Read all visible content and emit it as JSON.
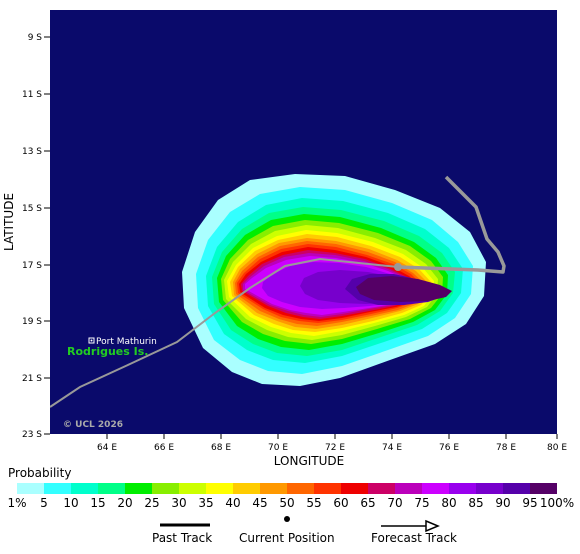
{
  "map": {
    "background_color": "#0a0a6b",
    "lat_axis_title": "LATITUDE",
    "lon_axis_title": "LONGITUDE",
    "lat_labels": [
      "9 S",
      "11 S",
      "13 S",
      "15 S",
      "17 S",
      "19 S",
      "21 S",
      "23 S"
    ],
    "lon_labels": [
      "64 E",
      "66 E",
      "68 E",
      "70 E",
      "72 E",
      "74 E",
      "76 E",
      "78 E",
      "80 E"
    ],
    "island_name": "Rodrigues Is.",
    "island_color": "#22cc22",
    "city_name": "Port Mathurin",
    "copyright": "© UCL 2026",
    "track_color": "#999999",
    "current_position_marker": "dot"
  },
  "probability": {
    "title": "Probability",
    "labels": [
      "1%",
      "5",
      "10",
      "15",
      "20",
      "25",
      "30",
      "35",
      "40",
      "45",
      "50",
      "55",
      "60",
      "65",
      "70",
      "75",
      "80",
      "85",
      "90",
      "95",
      "100%"
    ],
    "colors": [
      "#aaffff",
      "#33ffff",
      "#00ffcc",
      "#00ff88",
      "#00ee00",
      "#88ee00",
      "#ccff00",
      "#ffff00",
      "#ffcc00",
      "#ff9900",
      "#ff6600",
      "#ff3300",
      "#ee0000",
      "#cc0066",
      "#bb00bb",
      "#cc00ff",
      "#9900ee",
      "#7700cc",
      "#5500aa",
      "#550066"
    ]
  },
  "legend": {
    "past_track": "Past Track",
    "current_position": "Current Position",
    "forecast_track": "Forecast Track"
  }
}
